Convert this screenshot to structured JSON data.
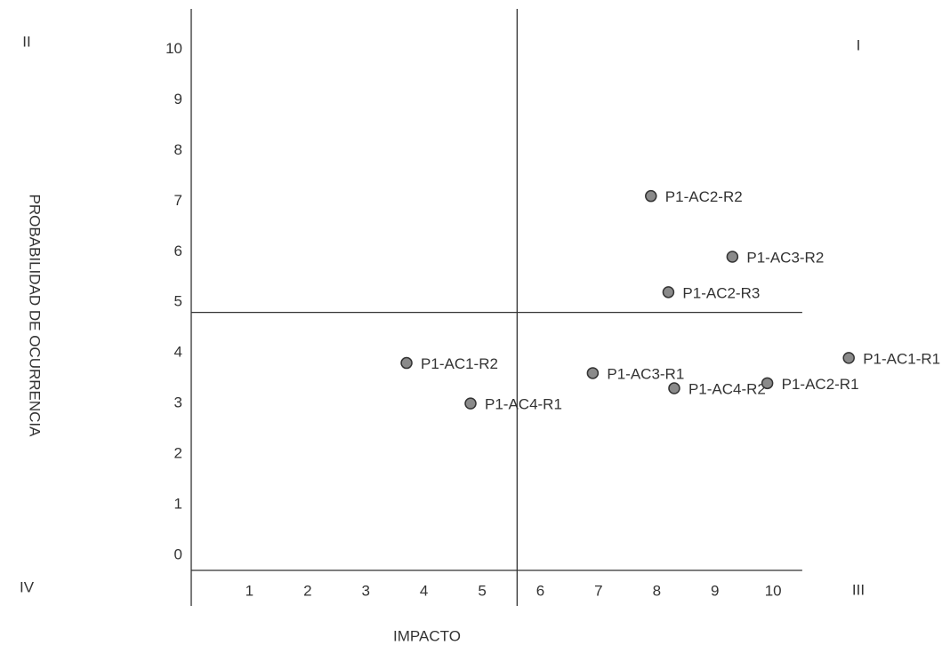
{
  "chart_data": {
    "type": "scatter",
    "x_label": "IMPACTO",
    "y_label": "PROBABILIDAD DE OCURRENCIA",
    "labels": [
      "P1-AC2-R2",
      "P1-AC3-R2",
      "P1-AC2-R3",
      "P1-AC1-R2",
      "P1-AC3-R1",
      "P1-AC4-R2",
      "P1-AC4-R1",
      "P1-AC2-R1",
      "P1-AC1-R1"
    ],
    "x": [
      7.9,
      9.3,
      8.2,
      3.7,
      6.9,
      8.3,
      4.8,
      9.9,
      11.3
    ],
    "values": [
      7.1,
      5.9,
      5.2,
      3.8,
      3.6,
      3.3,
      3.0,
      3.4,
      3.9
    ],
    "color": "#8a8a8a",
    "xlim": [
      0,
      12
    ],
    "ylim": [
      -0.3,
      10.8
    ],
    "xticks": [
      1,
      2,
      3,
      4,
      5,
      6,
      7,
      8,
      9,
      10
    ],
    "yticks": [
      0,
      1,
      2,
      3,
      4,
      5,
      6,
      7,
      8,
      9,
      10
    ],
    "x_threshold": 5.6,
    "y_threshold": 4.8,
    "grid": false,
    "quadrants": [
      {
        "label": "II",
        "corner": "top-left"
      },
      {
        "label": "I",
        "corner": "top-right"
      },
      {
        "label": "IV",
        "corner": "bottom-left"
      },
      {
        "label": "III",
        "corner": "bottom-right"
      }
    ]
  }
}
